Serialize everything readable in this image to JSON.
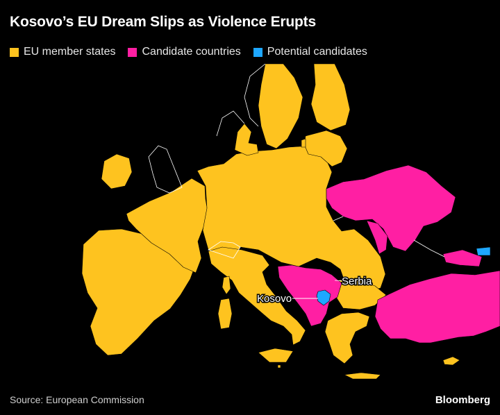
{
  "title": "Kosovo’s EU Dream Slips as Violence Erupts",
  "legend": [
    {
      "label": "EU member states",
      "color": "#fec31f"
    },
    {
      "label": "Candidate countries",
      "color": "#ff1fa3"
    },
    {
      "label": "Potential candidates",
      "color": "#1ea7ff"
    }
  ],
  "labels": {
    "serbia": "Serbia",
    "kosovo": "Kosovo"
  },
  "colors": {
    "background": "#000000",
    "eu": "#fec31f",
    "candidate": "#ff1fa3",
    "potential": "#1ea7ff",
    "non_eu": "#000000",
    "border": "#ffffff"
  },
  "footer": {
    "source": "Source: European Commission",
    "brand": "Bloomberg"
  }
}
